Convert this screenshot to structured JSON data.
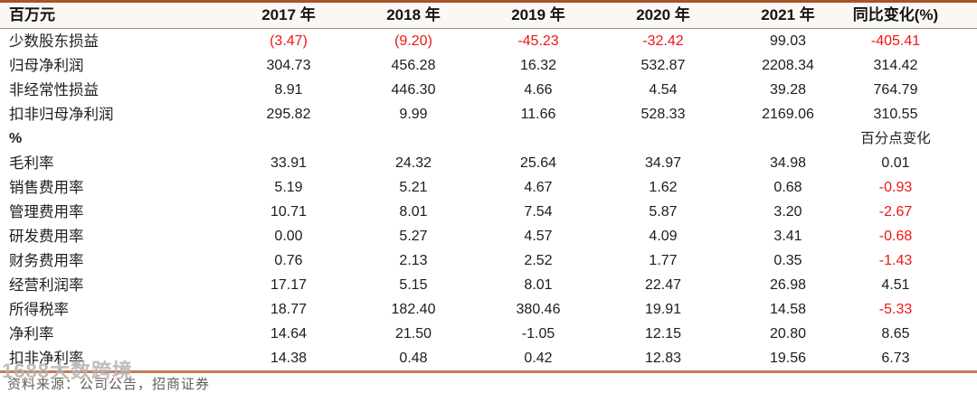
{
  "table": {
    "unit_header": "百万元",
    "columns": [
      "2017 年",
      "2018 年",
      "2019 年",
      "2020 年",
      "2021 年",
      "同比变化(%)"
    ],
    "rows": [
      {
        "label": "少数股东损益",
        "values": [
          "(3.47)",
          "(9.20)",
          "-45.23",
          "-32.42",
          "99.03",
          "-405.41"
        ],
        "red": [
          1,
          1,
          1,
          1,
          0,
          1
        ]
      },
      {
        "label": "归母净利润",
        "values": [
          "304.73",
          "456.28",
          "16.32",
          "532.87",
          "2208.34",
          "314.42"
        ],
        "red": [
          0,
          0,
          0,
          0,
          0,
          0
        ]
      },
      {
        "label": "非经常性损益",
        "values": [
          "8.91",
          "446.30",
          "4.66",
          "4.54",
          "39.28",
          "764.79"
        ],
        "red": [
          0,
          0,
          0,
          0,
          0,
          0
        ]
      },
      {
        "label": "扣非归母净利润",
        "values": [
          "295.82",
          "9.99",
          "11.66",
          "528.33",
          "2169.06",
          "310.55"
        ],
        "red": [
          0,
          0,
          0,
          0,
          0,
          0
        ]
      },
      {
        "label": "%",
        "section": true,
        "values": [
          "",
          "",
          "",
          "",
          "",
          "百分点变化"
        ],
        "red": [
          0,
          0,
          0,
          0,
          0,
          0
        ]
      },
      {
        "label": "毛利率",
        "values": [
          "33.91",
          "24.32",
          "25.64",
          "34.97",
          "34.98",
          "0.01"
        ],
        "red": [
          0,
          0,
          0,
          0,
          0,
          0
        ]
      },
      {
        "label": "销售费用率",
        "values": [
          "5.19",
          "5.21",
          "4.67",
          "1.62",
          "0.68",
          "-0.93"
        ],
        "red": [
          0,
          0,
          0,
          0,
          0,
          1
        ]
      },
      {
        "label": "管理费用率",
        "values": [
          "10.71",
          "8.01",
          "7.54",
          "5.87",
          "3.20",
          "-2.67"
        ],
        "red": [
          0,
          0,
          0,
          0,
          0,
          1
        ]
      },
      {
        "label": "研发费用率",
        "values": [
          "0.00",
          "5.27",
          "4.57",
          "4.09",
          "3.41",
          "-0.68"
        ],
        "red": [
          0,
          0,
          0,
          0,
          0,
          1
        ]
      },
      {
        "label": "财务费用率",
        "values": [
          "0.76",
          "2.13",
          "2.52",
          "1.77",
          "0.35",
          "-1.43"
        ],
        "red": [
          0,
          0,
          0,
          0,
          0,
          1
        ]
      },
      {
        "label": "经营利润率",
        "values": [
          "17.17",
          "5.15",
          "8.01",
          "22.47",
          "26.98",
          "4.51"
        ],
        "red": [
          0,
          0,
          0,
          0,
          0,
          0
        ]
      },
      {
        "label": "所得税率",
        "values": [
          "18.77",
          "182.40",
          "380.46",
          "19.91",
          "14.58",
          "-5.33"
        ],
        "red": [
          0,
          0,
          0,
          0,
          0,
          1
        ]
      },
      {
        "label": "净利率",
        "values": [
          "14.64",
          "21.50",
          "-1.05",
          "12.15",
          "20.80",
          "8.65"
        ],
        "red": [
          0,
          0,
          0,
          0,
          0,
          0
        ]
      },
      {
        "label": "扣非净利率",
        "values": [
          "14.38",
          "0.48",
          "0.42",
          "12.83",
          "19.56",
          "6.73"
        ],
        "red": [
          0,
          0,
          0,
          0,
          0,
          0
        ]
      }
    ]
  },
  "footer": {
    "source_note": "资料来源：公司公告，招商证券"
  },
  "watermark": {
    "text": "1688大数跨境"
  },
  "colors": {
    "top_border": "#A9532F",
    "bottom_border": "#C57B51",
    "header_bg": "#FBF8F1",
    "negative_red": "#F01414"
  }
}
